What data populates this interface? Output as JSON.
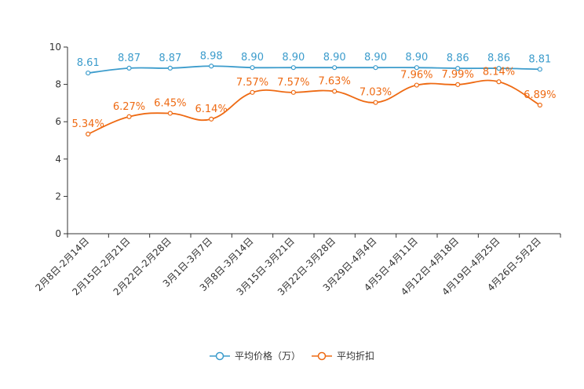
{
  "chart_data": {
    "type": "line",
    "categories": [
      "2月8日-2月14日",
      "2月15日-2月21日",
      "2月22日-2月28日",
      "3月1日-3月7日",
      "3月8日-3月14日",
      "3月15日-3月21日",
      "3月22日-3月28日",
      "3月29日-4月4日",
      "4月5日-4月11日",
      "4月12日-4月18日",
      "4月19日-4月25日",
      "4月26日-5月2日"
    ],
    "ylim": [
      0,
      10
    ],
    "yticks": [
      0,
      2,
      4,
      6,
      8,
      10
    ],
    "series": [
      {
        "name": "平均价格（万）",
        "color": "#3c9ccc",
        "values": [
          8.61,
          8.87,
          8.87,
          8.98,
          8.9,
          8.9,
          8.9,
          8.9,
          8.9,
          8.86,
          8.86,
          8.81
        ],
        "labels": [
          "8.61",
          "8.87",
          "8.87",
          "8.98",
          "8.90",
          "8.90",
          "8.90",
          "8.90",
          "8.90",
          "8.86",
          "8.86",
          "8.81"
        ]
      },
      {
        "name": "平均折扣",
        "color": "#ee6a13",
        "values": [
          5.34,
          6.27,
          6.45,
          6.14,
          7.57,
          7.57,
          7.63,
          7.03,
          7.96,
          7.99,
          8.14,
          6.89
        ],
        "labels": [
          "5.34%",
          "6.27%",
          "6.45%",
          "6.14%",
          "7.57%",
          "7.57%",
          "7.63%",
          "7.03%",
          "7.96%",
          "7.99%",
          "8.14%",
          "6.89%"
        ]
      }
    ],
    "legend": [
      "平均价格（万）",
      "平均折扣"
    ],
    "legend_position": "bottom-center"
  }
}
